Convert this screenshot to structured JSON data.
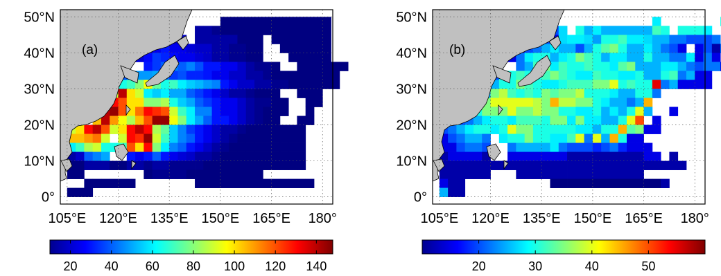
{
  "figure": {
    "panels": [
      {
        "label": "(a)",
        "xticks": [
          "105°E",
          "120°E",
          "135°E",
          "150°E",
          "165°E",
          "180°"
        ],
        "yticks": [
          "0°",
          "10°N",
          "20°N",
          "30°N",
          "40°N",
          "50°N"
        ],
        "colorbar": {
          "min": 10,
          "max": 148,
          "ticks": [
            20,
            40,
            60,
            80,
            100,
            120,
            140
          ]
        }
      },
      {
        "label": "(b)",
        "xticks": [
          "105°E",
          "120°E",
          "135°E",
          "150°E",
          "165°E",
          "180°"
        ],
        "yticks": [
          "0°",
          "10°N",
          "20°N",
          "30°N",
          "40°N",
          "50°N"
        ],
        "colorbar": {
          "min": 10,
          "max": 60,
          "ticks": [
            20,
            30,
            40,
            50
          ]
        }
      }
    ]
  },
  "chart_data": [
    {
      "type": "heatmap",
      "label": "(a)",
      "x_range": [
        103,
        183
      ],
      "y_range": [
        -2,
        52
      ],
      "cell_size_deg": 2.5,
      "colorbar_range": [
        10,
        148
      ],
      "ytick_labels": [
        "0°",
        "10°N",
        "20°N",
        "30°N",
        "40°N",
        "50°N"
      ],
      "xtick_labels": [
        "105°E",
        "120°E",
        "135°E",
        "150°E",
        "165°E",
        "180°"
      ],
      "rows_lat": [
        47.5,
        45,
        42.5,
        40,
        37.5,
        35,
        32.5,
        30,
        27.5,
        25,
        22.5,
        20,
        17.5,
        15,
        12.5,
        10,
        7.5,
        5,
        2.5,
        0
      ],
      "row_start_lon": [
        140,
        135,
        125,
        125,
        122.5,
        120,
        117.5,
        117.5,
        115,
        112.5,
        110,
        107.5,
        105,
        105,
        105,
        105,
        105,
        105,
        110,
        105
      ],
      "rows": [
        [
          0,
          0,
          0,
          0,
          10,
          10,
          10,
          10,
          10,
          10,
          10,
          10,
          10,
          10,
          10,
          10,
          10
        ],
        [
          14,
          0,
          0,
          15,
          15,
          12,
          10,
          10,
          10,
          10,
          10,
          10,
          10,
          10,
          10,
          10,
          10,
          10,
          10
        ],
        [
          0,
          0,
          15,
          20,
          20,
          22,
          0,
          15,
          15,
          15,
          15,
          15,
          10,
          10,
          10,
          0,
          10,
          10,
          10,
          10,
          10,
          10,
          10
        ],
        [
          0,
          15,
          25,
          30,
          25,
          25,
          22,
          20,
          20,
          15,
          15,
          12,
          12,
          10,
          10,
          0,
          0,
          10,
          10,
          10,
          10,
          10,
          10
        ],
        [
          0,
          22,
          28,
          35,
          32,
          28,
          25,
          25,
          22,
          20,
          15,
          15,
          12,
          12,
          10,
          10,
          0,
          0,
          0,
          10,
          10,
          10,
          10,
          10
        ],
        [
          25,
          0,
          0,
          30,
          35,
          40,
          45,
          40,
          45,
          38,
          30,
          30,
          25,
          25,
          20,
          15,
          12,
          12,
          10,
          0,
          0,
          10,
          10,
          10,
          10,
          10,
          10
        ],
        [
          35,
          38,
          42,
          48,
          48,
          50,
          42,
          35,
          38,
          32,
          32,
          30,
          25,
          25,
          20,
          20,
          15,
          15,
          12,
          10,
          10,
          10,
          10,
          10,
          10,
          10,
          10
        ],
        [
          40,
          65,
          70,
          80,
          95,
          75,
          65,
          70,
          60,
          55,
          52,
          48,
          45,
          30,
          25,
          20,
          20,
          15,
          15,
          12,
          12,
          10,
          10,
          10,
          10,
          10,
          10
        ],
        [
          60,
          90,
          140,
          100,
          90,
          60,
          55,
          60,
          50,
          50,
          40,
          35,
          30,
          25,
          20,
          15,
          15,
          12,
          10,
          10,
          10,
          0,
          0,
          10,
          10,
          10
        ],
        [
          0,
          100,
          130,
          120,
          100,
          100,
          80,
          80,
          85,
          65,
          55,
          50,
          40,
          35,
          30,
          25,
          25,
          20,
          15,
          12,
          12,
          10,
          10,
          0,
          0,
          10,
          10
        ],
        [
          0,
          100,
          140,
          145,
          120,
          100,
          115,
          130,
          125,
          120,
          90,
          70,
          60,
          45,
          45,
          30,
          25,
          25,
          20,
          15,
          12,
          10,
          10,
          10,
          0,
          0,
          10
        ],
        [
          0,
          0,
          105,
          140,
          110,
          95,
          85,
          105,
          120,
          145,
          145,
          95,
          80,
          60,
          50,
          40,
          30,
          30,
          25,
          20,
          15,
          12,
          10,
          10,
          0,
          0,
          10,
          10
        ],
        [
          90,
          100,
          130,
          140,
          120,
          90,
          100,
          130,
          140,
          130,
          85,
          75,
          55,
          45,
          35,
          30,
          25,
          20,
          15,
          15,
          12,
          10,
          10,
          10,
          10,
          10,
          10,
          10
        ],
        [
          105,
          105,
          110,
          115,
          90,
          0,
          90,
          130,
          125,
          145,
          90,
          70,
          55,
          45,
          40,
          30,
          25,
          20,
          15,
          12,
          10,
          10,
          10,
          10,
          10,
          10,
          10,
          10
        ],
        [
          60,
          70,
          85,
          90,
          65,
          65,
          70,
          120,
          100,
          130,
          80,
          60,
          45,
          40,
          30,
          25,
          20,
          15,
          12,
          10,
          10,
          10,
          10,
          10,
          10,
          10,
          10,
          10
        ],
        [
          15,
          20,
          40,
          45,
          50,
          0,
          0,
          30,
          25,
          30,
          40,
          30,
          25,
          22,
          20,
          15,
          15,
          12,
          10,
          10,
          10,
          10,
          10,
          10,
          10,
          10,
          10,
          10
        ],
        [
          10,
          10,
          15,
          15,
          15,
          10,
          10,
          15,
          15,
          12,
          15,
          15,
          12,
          12,
          12,
          12,
          10,
          10,
          10,
          10,
          10,
          10,
          10,
          10,
          10,
          10,
          10,
          10
        ],
        [
          10,
          10,
          0,
          0,
          0,
          0,
          0,
          0,
          0,
          10,
          12,
          12,
          12,
          12,
          10,
          10,
          10,
          10,
          10,
          10,
          10,
          10,
          10,
          0,
          0,
          0,
          0,
          0
        ],
        [
          10,
          10,
          10,
          10,
          10,
          10,
          0,
          0,
          0,
          0,
          0,
          0,
          0,
          10,
          10,
          10,
          10,
          10,
          10,
          10,
          10,
          10,
          10,
          10,
          10,
          10,
          10
        ],
        [
          10,
          10,
          10
        ]
      ]
    },
    {
      "type": "heatmap",
      "label": "(b)",
      "x_range": [
        103,
        183
      ],
      "y_range": [
        -2,
        52
      ],
      "cell_size_deg": 2.5,
      "colorbar_range": [
        10,
        60
      ],
      "ytick_labels": [
        "0°",
        "10°N",
        "20°N",
        "30°N",
        "40°N",
        "50°N"
      ],
      "xtick_labels": [
        "105°E",
        "120°E",
        "135°E",
        "150°E",
        "165°E",
        "180°"
      ],
      "rows_lat": [
        47.5,
        45,
        42.5,
        40,
        37.5,
        35,
        32.5,
        30,
        27.5,
        25,
        22.5,
        20,
        17.5,
        15,
        12.5,
        10,
        7.5,
        5,
        2.5,
        0
      ],
      "row_start_lon": [
        137.5,
        132.5,
        125,
        125,
        122.5,
        120,
        117.5,
        117.5,
        115,
        112.5,
        110,
        107.5,
        105,
        105,
        105,
        105,
        105,
        105,
        105,
        105
      ],
      "rows": [
        [
          0,
          0,
          0,
          0,
          0,
          0,
          0,
          0,
          0,
          0,
          0,
          0,
          28,
          0,
          0,
          0,
          0,
          0,
          0,
          0,
          30,
          30,
          0,
          30
        ],
        [
          30,
          0,
          20,
          27,
          0,
          30,
          25,
          28,
          25,
          25,
          25,
          25,
          25,
          25,
          32,
          30,
          0,
          30,
          30,
          30,
          28
        ],
        [
          15,
          15,
          17,
          22,
          20,
          15,
          27,
          28,
          28,
          27,
          24,
          30,
          30,
          32,
          28,
          28,
          27,
          25,
          25,
          22,
          22,
          20,
          20,
          20,
          22,
          0,
          22
        ],
        [
          0,
          15,
          20,
          22,
          25,
          28,
          25,
          25,
          20,
          25,
          30,
          33,
          35,
          30,
          25,
          25,
          28,
          25,
          22,
          20,
          15,
          0,
          15,
          20,
          12,
          22,
          15
        ],
        [
          0,
          15,
          22,
          28,
          30,
          30,
          25,
          28,
          30,
          35,
          32,
          30,
          25,
          28,
          28,
          25,
          25,
          30,
          25,
          25,
          22,
          22,
          28,
          15,
          22,
          15
        ],
        [
          20,
          0,
          0,
          22,
          25,
          32,
          35,
          28,
          32,
          30,
          30,
          32,
          30,
          30,
          28,
          33,
          35,
          25,
          25,
          25,
          28,
          28,
          25,
          22,
          20,
          22,
          22,
          15
        ],
        [
          22,
          20,
          30,
          30,
          32,
          30,
          30,
          32,
          35,
          32,
          30,
          28,
          28,
          32,
          30,
          30,
          28,
          28,
          30,
          25,
          25,
          30,
          32,
          22,
          25,
          15,
          15
        ],
        [
          22,
          25,
          30,
          30,
          35,
          32,
          30,
          28,
          28,
          30,
          32,
          32,
          32,
          35,
          35,
          40,
          30,
          32,
          30,
          30,
          55,
          22,
          25,
          15,
          15,
          15,
          15
        ],
        [
          22,
          25,
          35,
          38,
          32,
          30,
          32,
          30,
          35,
          33,
          35,
          35,
          38,
          30,
          30,
          30,
          28,
          25,
          25,
          30,
          30,
          22,
          0,
          0,
          0,
          0
        ],
        [
          22,
          28,
          35,
          40,
          40,
          40,
          40,
          40,
          38,
          35,
          45,
          38,
          38,
          35,
          35,
          30,
          28,
          25,
          25,
          22,
          25,
          45,
          0,
          0,
          0,
          0
        ],
        [
          20,
          25,
          30,
          35,
          35,
          35,
          40,
          35,
          35,
          38,
          35,
          35,
          30,
          30,
          28,
          28,
          30,
          25,
          28,
          25,
          30,
          40,
          25,
          0,
          0,
          15
        ],
        [
          15,
          20,
          22,
          25,
          28,
          30,
          30,
          28,
          32,
          32,
          32,
          30,
          35,
          35,
          28,
          35,
          28,
          28,
          25,
          25,
          30,
          40,
          50,
          0,
          15,
          0,
          0
        ],
        [
          20,
          22,
          25,
          28,
          30,
          30,
          28,
          30,
          40,
          35,
          35,
          30,
          30,
          30,
          30,
          30,
          28,
          28,
          25,
          30,
          30,
          45,
          33,
          35,
          15,
          15,
          0,
          0
        ],
        [
          15,
          20,
          22,
          25,
          25,
          22,
          0,
          28,
          30,
          30,
          35,
          30,
          30,
          28,
          28,
          32,
          40,
          22,
          40,
          25,
          45,
          30,
          15,
          15,
          0,
          0
        ],
        [
          15,
          15,
          20,
          22,
          22,
          20,
          0,
          0,
          22,
          25,
          25,
          25,
          25,
          28,
          22,
          20,
          20,
          20,
          18,
          20,
          22,
          18,
          15,
          15,
          15,
          0,
          0
        ],
        [
          12,
          15,
          15,
          15,
          15,
          12,
          0,
          0,
          15,
          15,
          15,
          15,
          15,
          15,
          15,
          12,
          12,
          12,
          12,
          12,
          12,
          12,
          12,
          12,
          15,
          15,
          0,
          12
        ],
        [
          12,
          12,
          12,
          12,
          12,
          12,
          12,
          12,
          12,
          12,
          12,
          12,
          12,
          12,
          12,
          12,
          12,
          12,
          12,
          12,
          12,
          12,
          12,
          12,
          12,
          12,
          12,
          12,
          12
        ],
        [
          12,
          12,
          12,
          12,
          12,
          12,
          0,
          0,
          0,
          12,
          12,
          12,
          12,
          12,
          12,
          12,
          12,
          12,
          12,
          12,
          12,
          12,
          12,
          12,
          0,
          0,
          0,
          0,
          0,
          0
        ],
        [
          15,
          12,
          12,
          0,
          0,
          0,
          0,
          0,
          0,
          0,
          0,
          0,
          0,
          10,
          10,
          10,
          10,
          10,
          10,
          10,
          10,
          10,
          10,
          10,
          10,
          10,
          12,
          0,
          0,
          0
        ],
        [
          25,
          12,
          12
        ]
      ]
    }
  ]
}
